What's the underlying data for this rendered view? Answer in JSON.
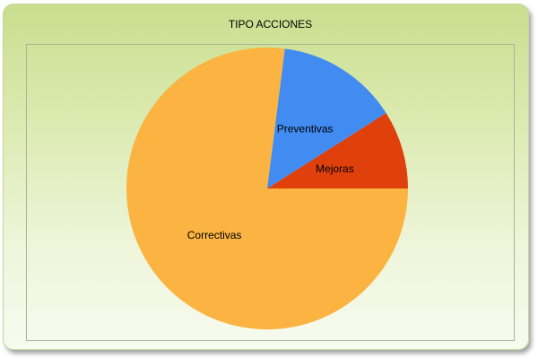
{
  "chart_data": {
    "type": "pie",
    "title": "TIPO ACCIONES",
    "slices": [
      {
        "label": "Mejoras",
        "value": 9,
        "color": "#e0400b"
      },
      {
        "label": "Preventivas",
        "value": 14,
        "color": "#418bf1"
      },
      {
        "label": "Correctivas",
        "value": 77,
        "color": "#fbb441"
      }
    ],
    "legend": "none",
    "labels_inside": true
  }
}
